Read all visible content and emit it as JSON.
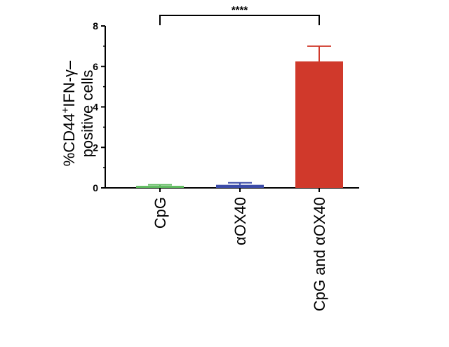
{
  "chart_data": {
    "type": "bar",
    "categories": [
      "CpG",
      "αOX40",
      "CpG and αOX40"
    ],
    "values": [
      0.1,
      0.15,
      6.25
    ],
    "errors": [
      0.05,
      0.1,
      0.75
    ],
    "colors": [
      "#5cb85c",
      "#3b4ba8",
      "#d0392b"
    ],
    "ylabel_line1": "%CD44",
    "ylabel_sup": "+",
    "ylabel_line1_rest": "IFN-γ–",
    "ylabel_line2": "positive cells",
    "ylim": [
      0,
      8
    ],
    "yticks": [
      "0",
      "2",
      "4",
      "6",
      "8"
    ],
    "significance": {
      "from": 0,
      "to": 2,
      "label": "****"
    }
  }
}
